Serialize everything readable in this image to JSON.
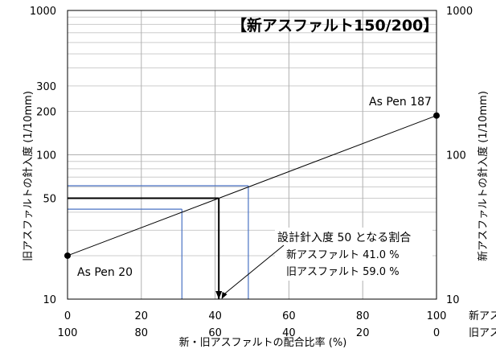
{
  "chart_data": {
    "type": "line",
    "title": "【新アスファルト150/200】",
    "y_left_label": "旧アスファルトの針入度 (1/10mm)",
    "y_right_label": "新アスファルトの針入度 (1/10mm)",
    "x_label": "新・旧アスファルトの配合比率 (%)",
    "x_row1_label": "新アス",
    "x_row2_label": "旧アス",
    "x_ticks_new": [
      "0",
      "20",
      "40",
      "60",
      "80",
      "100"
    ],
    "x_ticks_old": [
      "100",
      "80",
      "60",
      "40",
      "20",
      "0"
    ],
    "x_tick_values": [
      0,
      20,
      40,
      60,
      80,
      100
    ],
    "y_ticks_left": [
      "10",
      "50",
      "100",
      "200",
      "300",
      "1000"
    ],
    "y_tick_values_left": [
      10,
      50,
      100,
      200,
      300,
      1000
    ],
    "y_ticks_right": [
      "10",
      "100",
      "1000"
    ],
    "y_tick_values_right": [
      10,
      100,
      1000
    ],
    "y_scale": "log",
    "xlim": [
      0,
      100
    ],
    "ylim": [
      10,
      1000
    ],
    "series": [
      {
        "x": [
          0,
          100
        ],
        "y": [
          20,
          187
        ]
      }
    ],
    "point_labels": [
      "As Pen 20",
      "As Pen 187"
    ],
    "design_line_black": {
      "x": 41.0,
      "y": 50
    },
    "guide_lines_blue": [
      {
        "x": 31,
        "y": 42
      },
      {
        "x": 49,
        "y": 61
      }
    ],
    "annotation": {
      "lines": [
        "設計針入度 50 となる割合",
        "新アスファルト 41.0 %",
        "旧アスファルト 59.0 %"
      ],
      "arrow_to_x": 40
    },
    "colors": {
      "series": "#000000",
      "guide": "#4a72c4",
      "major_grid": "#b0b0b0",
      "minor_grid": "#cccccc"
    },
    "grid": true
  }
}
